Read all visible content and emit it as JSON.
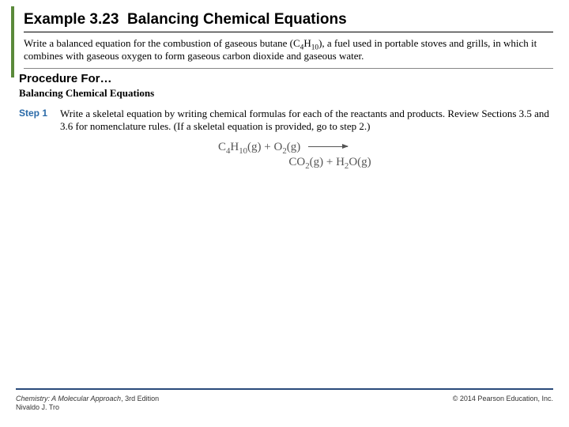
{
  "accent_color": "#5a8a3a",
  "footer_rule_color": "#2a4a7a",
  "step_label_color": "#2a6aa8",
  "title": {
    "example_num": "Example 3.23",
    "example_title": "Balancing Chemical Equations"
  },
  "problem": {
    "text_before_formula": "Write a balanced equation for the combustion of gaseous butane (C",
    "f_sub1": "4",
    "f_mid": "H",
    "f_sub2": "10",
    "text_after_formula": "), a fuel used in portable stoves and grills, in which it combines with gaseous oxygen to form gaseous carbon dioxide and gaseous water."
  },
  "procedure": {
    "heading": "Procedure For…",
    "subheading": "Balancing Chemical Equations"
  },
  "step1": {
    "label": "Step 1",
    "text": "Write a skeletal equation by writing chemical formulas for each of the reactants and products. Review Sections 3.5 and 3.6 for nomenclature rules. (If a skeletal equation is provided, go to step 2.)"
  },
  "equation": {
    "r1_base": "C",
    "r1_s1": "4",
    "r1_mid": "H",
    "r1_s2": "10",
    "r1_phase": "(g)",
    "plus": " + ",
    "r2_base": "O",
    "r2_s1": "2",
    "r2_phase": "(g)",
    "p1_base": "CO",
    "p1_s1": "2",
    "p1_phase": "(g)",
    "p2_base": "H",
    "p2_s1": "2",
    "p2_mid": "O",
    "p2_phase": "(g)"
  },
  "footer": {
    "book_title": "Chemistry: A Molecular Approach",
    "edition": ", 3rd Edition",
    "author": "Nivaldo J. Tro",
    "copyright": "© 2014 Pearson Education, Inc."
  }
}
